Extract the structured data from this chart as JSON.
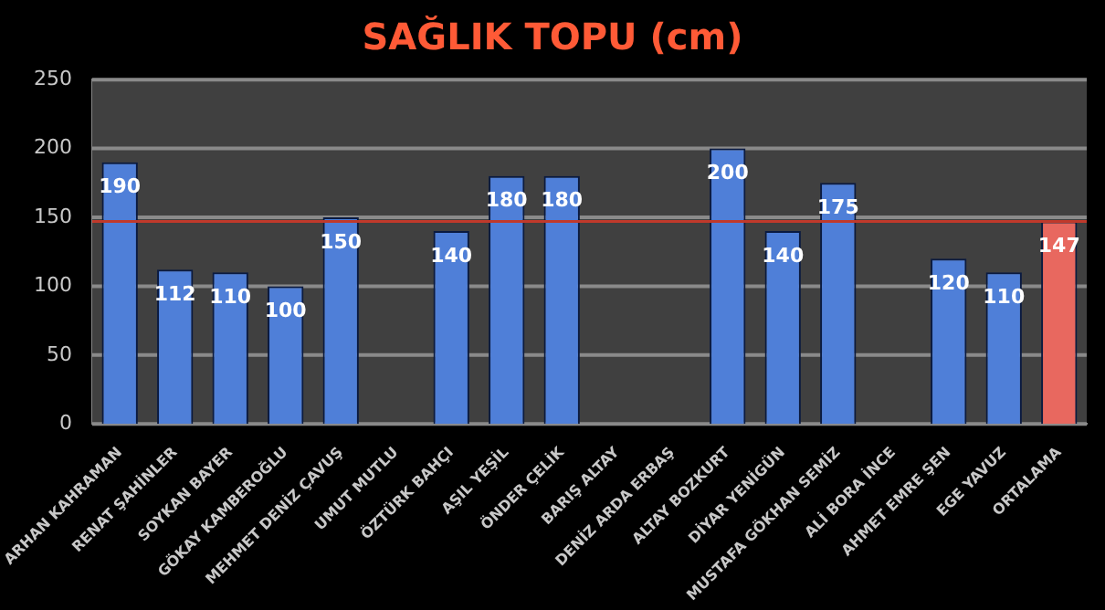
{
  "chart_data": {
    "type": "bar",
    "title": "SAĞLIK TOPU (cm)",
    "categories": [
      "ARHAN KAHRAMAN",
      "RENAT ŞAHİNLER",
      "SOYKAN BAYER",
      "GÖKAY KAMBEROĞLU",
      "MEHMET DENİZ ÇAVUŞ",
      "UMUT MUTLU",
      "ÖZTÜRK BAHÇI",
      "AŞIL YEŞİL",
      "ÖNDER ÇELİK",
      "BARIŞ ALTAY",
      "DENİZ ARDA ERBAŞ",
      "ALTAY BOZKURT",
      "DİYAR YENİGÜN",
      "MUSTAFA GÖKHAN SEMİZ",
      "ALİ BORA İNCE",
      "AHMET EMRE ŞEN",
      "EGE YAVUZ",
      "ORTALAMA"
    ],
    "values": [
      190,
      112,
      110,
      100,
      150,
      null,
      140,
      180,
      180,
      null,
      null,
      200,
      140,
      175,
      null,
      120,
      110,
      147
    ],
    "colors": [
      "#4f7fd8",
      "#4f7fd8",
      "#4f7fd8",
      "#4f7fd8",
      "#4f7fd8",
      "#4f7fd8",
      "#4f7fd8",
      "#4f7fd8",
      "#4f7fd8",
      "#4f7fd8",
      "#4f7fd8",
      "#4f7fd8",
      "#4f7fd8",
      "#4f7fd8",
      "#4f7fd8",
      "#4f7fd8",
      "#4f7fd8",
      "#e8685f"
    ],
    "ylim": [
      0,
      250
    ],
    "yticks": [
      0,
      50,
      100,
      150,
      200,
      250
    ],
    "grid": "y",
    "legend": false,
    "data_labels": true,
    "ref_lines": [
      {
        "axis": "y",
        "value": 147,
        "color": "#c0392b"
      }
    ]
  }
}
